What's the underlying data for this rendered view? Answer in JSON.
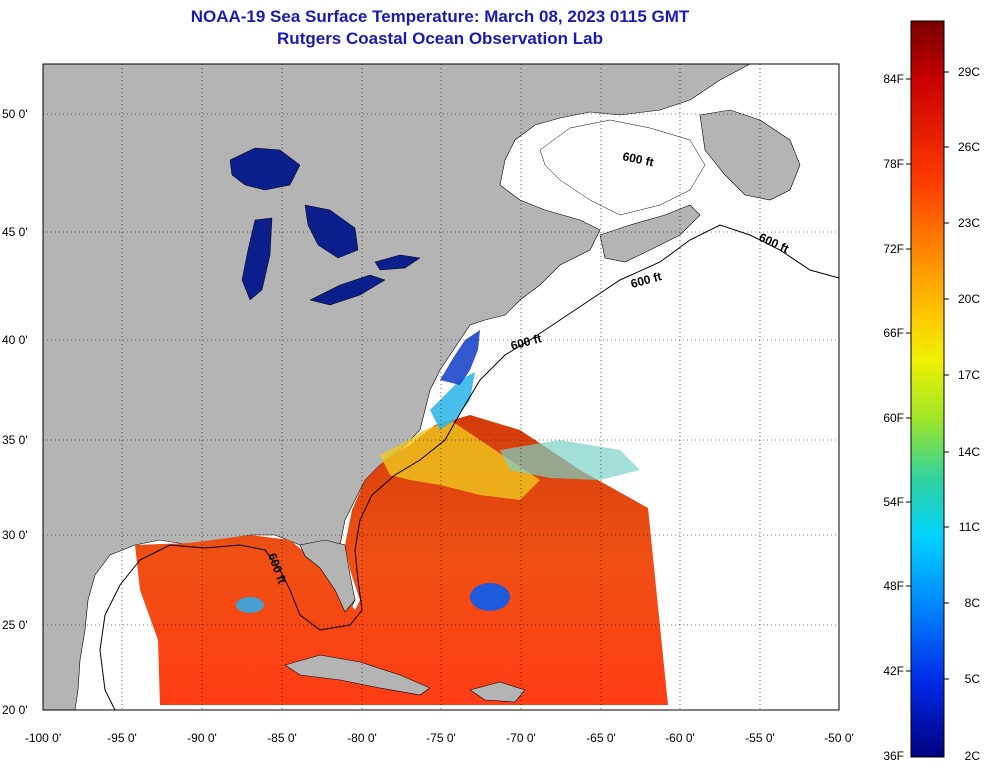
{
  "title_line1": "NOAA-19 Sea Surface Temperature:  March 08, 2023 0115 GMT",
  "title_line2": "Rutgers Coastal Ocean Observation Lab",
  "lat_labels": [
    "50 0'",
    "45 0'",
    "40 0'",
    "35 0'",
    "30 0'",
    "25 0'",
    "20 0'"
  ],
  "lon_labels": [
    "-100 0'",
    "-95 0'",
    "-90 0'",
    "-85 0'",
    "-80 0'",
    "-75 0'",
    "-70 0'",
    "-65 0'",
    "-60 0'",
    "-55 0'",
    "-50 0'"
  ],
  "contour_labels": [
    "600 ft",
    "600 ft",
    "600 ft",
    "600 ft",
    "600 ft"
  ],
  "colorbar": {
    "fahrenheit": [
      "84F",
      "78F",
      "72F",
      "66F",
      "60F",
      "54F",
      "48F",
      "42F",
      "36F"
    ],
    "celsius": [
      "29C",
      "26C",
      "23C",
      "20C",
      "17C",
      "14C",
      "11C",
      "8C",
      "5C",
      "2C"
    ]
  },
  "colors": {
    "title": "#1a1ab4",
    "land": "#b4b4b4",
    "no_data": "#ffffff",
    "lakes": "#0a1e8c",
    "warm": "#e8321e",
    "hot": "#f05a14",
    "mid": "#f0c81e",
    "cool": "#28b4e6",
    "cold": "#1e46c8"
  }
}
